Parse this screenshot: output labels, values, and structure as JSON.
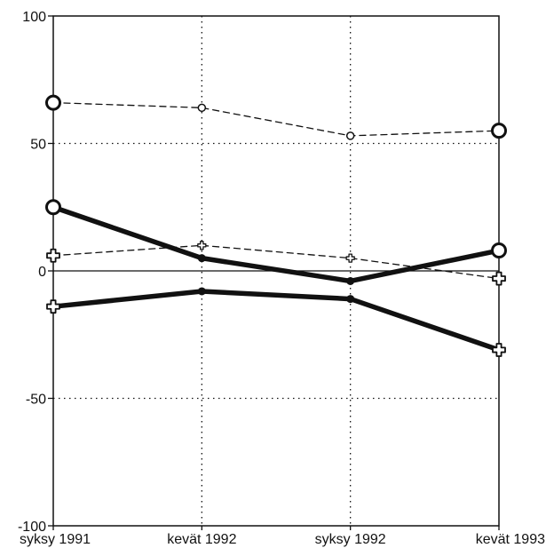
{
  "chart_data": {
    "type": "line",
    "title": "",
    "xlabel": "",
    "ylabel": "",
    "categories": [
      "syksy 1991",
      "kevät 1992",
      "syksy 1992",
      "kevät 1993"
    ],
    "ylim": [
      -100,
      100
    ],
    "yticks": [
      {
        "value": 100,
        "label": "100"
      },
      {
        "value": 50,
        "label": "50"
      },
      {
        "value": 0,
        "label": "0"
      },
      {
        "value": -50,
        "label": "-50"
      },
      {
        "value": -100,
        "label": "-100"
      }
    ],
    "grid": {
      "x": "dotted",
      "y": "dotted",
      "zero_line": "solid"
    },
    "legend": "none",
    "series": [
      {
        "values": [
          66,
          64,
          53,
          55
        ],
        "marker": "circle",
        "line_style": "dashed",
        "line_weight": "thin"
      },
      {
        "values": [
          25,
          5,
          -4,
          8
        ],
        "marker": "circle",
        "line_style": "solid",
        "line_weight": "thick"
      },
      {
        "values": [
          6,
          10,
          5,
          -3
        ],
        "marker": "cross",
        "line_style": "dashed",
        "line_weight": "thin"
      },
      {
        "values": [
          -14,
          -8,
          -11,
          -31
        ],
        "marker": "cross",
        "line_style": "solid",
        "line_weight": "thick"
      }
    ],
    "line_color": "#111111",
    "background": "#ffffff"
  }
}
